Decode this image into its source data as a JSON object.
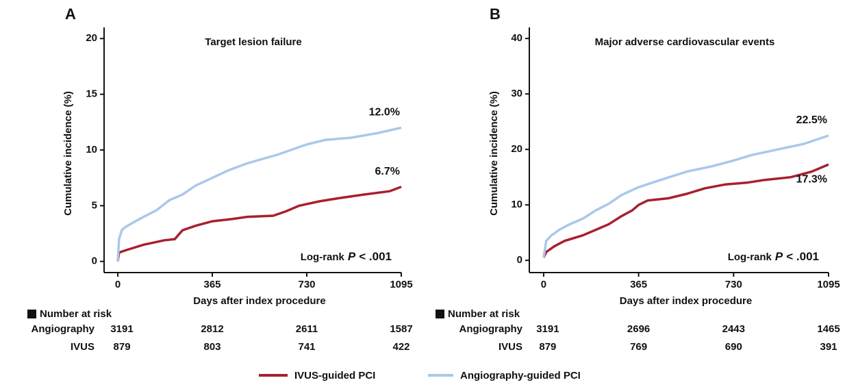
{
  "chart_data": [
    {
      "type": "line",
      "panel_label": "A",
      "title": "Target lesion failure",
      "xlabel": "Days after index procedure",
      "ylabel": "Cumulative incidence (%)",
      "xlim": [
        -53,
        1095
      ],
      "xticks": [
        0,
        365,
        730,
        1095
      ],
      "ylim": [
        -1,
        21
      ],
      "yticks": [
        0,
        5,
        10,
        15,
        20
      ],
      "annotation": {
        "prefix": "Log-rank",
        "p": "P",
        "suffix": "< .001"
      },
      "series": [
        {
          "name": "IVUS-guided PCI",
          "color": "#a8202f",
          "end_label": "6.7%",
          "label_side": "above",
          "x": [
            0,
            5,
            30,
            100,
            180,
            220,
            250,
            300,
            365,
            440,
            500,
            600,
            650,
            700,
            780,
            860,
            950,
            1050,
            1095
          ],
          "values": [
            0,
            0.8,
            1.0,
            1.5,
            1.9,
            2.0,
            2.8,
            3.2,
            3.6,
            3.8,
            4.0,
            4.1,
            4.5,
            5.0,
            5.4,
            5.7,
            6.0,
            6.3,
            6.7
          ]
        },
        {
          "name": "Angiography-guided PCI",
          "color": "#a9c8ea",
          "end_label": "12.0%",
          "label_side": "above",
          "x": [
            0,
            5,
            15,
            30,
            60,
            100,
            150,
            200,
            250,
            300,
            365,
            430,
            500,
            560,
            620,
            730,
            800,
            900,
            1000,
            1095
          ],
          "values": [
            0,
            2.0,
            2.8,
            3.1,
            3.5,
            4.0,
            4.6,
            5.5,
            6.0,
            6.8,
            7.5,
            8.2,
            8.8,
            9.2,
            9.6,
            10.5,
            10.9,
            11.1,
            11.5,
            12.0
          ]
        }
      ],
      "risk_table": {
        "title": "Number at risk",
        "rows": [
          {
            "name": "Angiography",
            "values": [
              3191,
              2812,
              2611,
              1587
            ]
          },
          {
            "name": "IVUS",
            "values": [
              879,
              803,
              741,
              422
            ]
          }
        ]
      }
    },
    {
      "type": "line",
      "panel_label": "B",
      "title": "Major adverse cardiovascular events",
      "xlabel": "Days after index procedure",
      "ylabel": "Cumulative incidence (%)",
      "xlim": [
        -55,
        1095
      ],
      "xticks": [
        0,
        365,
        730,
        1095
      ],
      "ylim": [
        -2.2,
        42
      ],
      "yticks": [
        0,
        10,
        20,
        30,
        40
      ],
      "annotation": {
        "prefix": "Log-rank",
        "p": "P",
        "suffix": "< .001"
      },
      "series": [
        {
          "color": "#a8202f",
          "end_label": "17.3%",
          "label_side": "below",
          "x": [
            0,
            10,
            40,
            80,
            150,
            200,
            250,
            300,
            340,
            365,
            400,
            480,
            550,
            620,
            700,
            780,
            850,
            950,
            1030,
            1095
          ],
          "values": [
            0.5,
            1.5,
            2.5,
            3.5,
            4.5,
            5.5,
            6.5,
            8,
            9,
            10,
            10.8,
            11.2,
            12,
            13,
            13.7,
            14,
            14.5,
            15,
            16,
            17.3
          ]
        },
        {
          "color": "#a9c8ea",
          "end_label": "22.5%",
          "label_side": "above",
          "x": [
            0,
            10,
            30,
            60,
            100,
            150,
            200,
            250,
            300,
            365,
            450,
            550,
            650,
            730,
            800,
            900,
            1000,
            1095
          ],
          "values": [
            0.5,
            3.5,
            4.5,
            5.5,
            6.5,
            7.5,
            9,
            10.2,
            11.8,
            13.2,
            14.5,
            16,
            17,
            18,
            19,
            20,
            21,
            22.5
          ]
        }
      ],
      "risk_table": {
        "title": "Number at risk",
        "rows": [
          {
            "name": "Angiography",
            "values": [
              3191,
              2696,
              2443,
              1465
            ]
          },
          {
            "name": "IVUS",
            "values": [
              879,
              769,
              690,
              391
            ]
          }
        ]
      }
    }
  ]
}
